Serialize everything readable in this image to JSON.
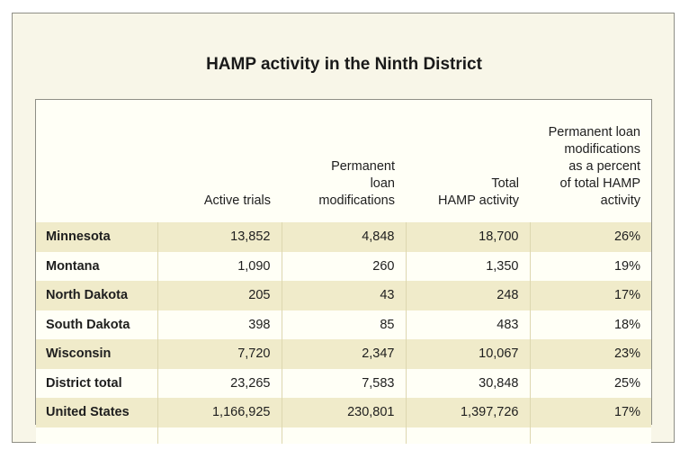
{
  "title": "HAMP activity in the Ninth District",
  "columns": [
    "",
    "Active trials",
    "Permanent\nloan\nmodifications",
    "Total\nHAMP activity",
    "Permanent loan\nmodifications\nas a percent\nof total HAMP\nactivity"
  ],
  "rows": [
    {
      "state": "Minnesota",
      "active_trials": "13,852",
      "permanent": "4,848",
      "total": "18,700",
      "percent": "26%"
    },
    {
      "state": "Montana",
      "active_trials": "1,090",
      "permanent": "260",
      "total": "1,350",
      "percent": "19%"
    },
    {
      "state": "North Dakota",
      "active_trials": "205",
      "permanent": "43",
      "total": "248",
      "percent": "17%"
    },
    {
      "state": "South Dakota",
      "active_trials": "398",
      "permanent": "85",
      "total": "483",
      "percent": "18%"
    },
    {
      "state": "Wisconsin",
      "active_trials": "7,720",
      "permanent": "2,347",
      "total": "10,067",
      "percent": "23%"
    },
    {
      "state": "District total",
      "active_trials": "23,265",
      "permanent": "7,583",
      "total": "30,848",
      "percent": "25%"
    },
    {
      "state": "United States",
      "active_trials": "1,166,925",
      "permanent": "230,801",
      "total": "1,397,726",
      "percent": "17%"
    }
  ],
  "colors": {
    "frame_background": "#f8f6e8",
    "table_background": "#fffff6",
    "shaded_row": "#f0ebca",
    "border": "#8f8f86"
  }
}
